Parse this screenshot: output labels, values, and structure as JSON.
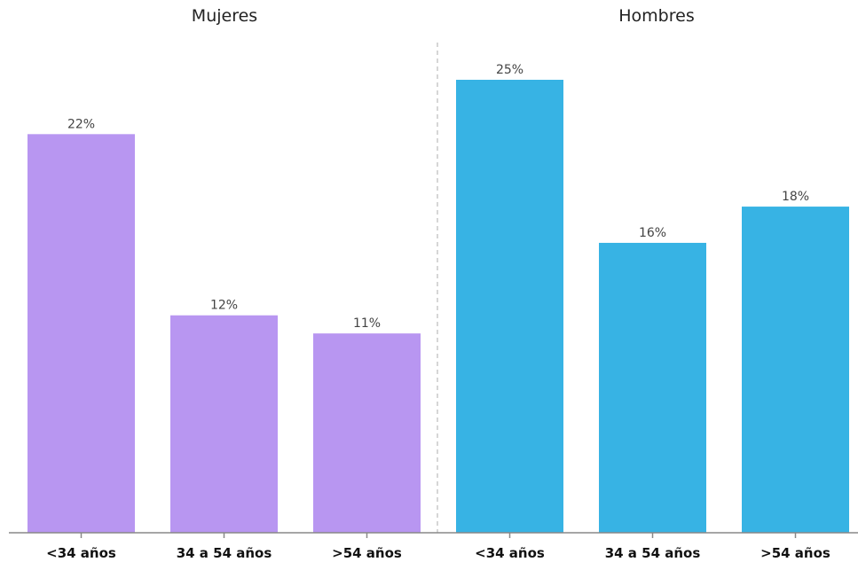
{
  "chart_data": {
    "type": "bar",
    "categories": [
      "<34 años",
      "34 a 54 años",
      ">54 años"
    ],
    "value_unit": "%",
    "ylim": [
      0,
      25
    ],
    "grid": false,
    "legend": "none",
    "panels": [
      {
        "title": "Mujeres",
        "color": "#b896f1",
        "values": [
          22,
          12,
          11
        ]
      },
      {
        "title": "Hombres",
        "color": "#37b3e4",
        "values": [
          25,
          16,
          18
        ]
      }
    ]
  }
}
